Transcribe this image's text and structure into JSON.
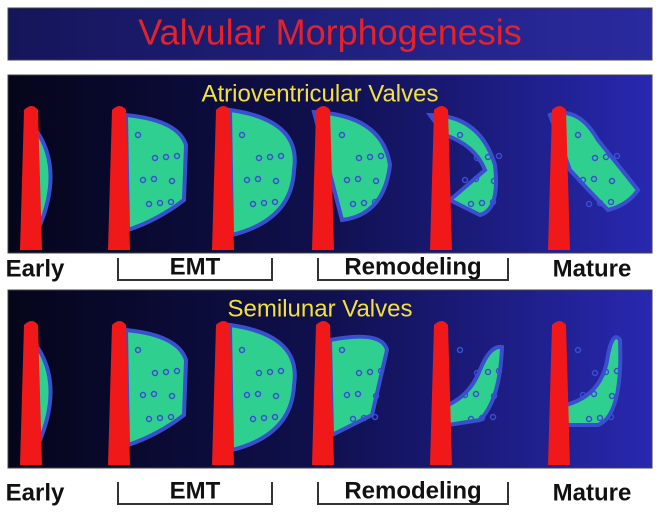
{
  "title": "Valvular Morphogenesis",
  "panels": [
    {
      "title": "Atrioventricular Valves",
      "stages": [
        "Early",
        "EMT",
        "Remodeling",
        "Mature"
      ]
    },
    {
      "title": "Semilunar Valves",
      "stages": [
        "Early",
        "EMT",
        "Remodeling",
        "Mature"
      ]
    }
  ]
}
